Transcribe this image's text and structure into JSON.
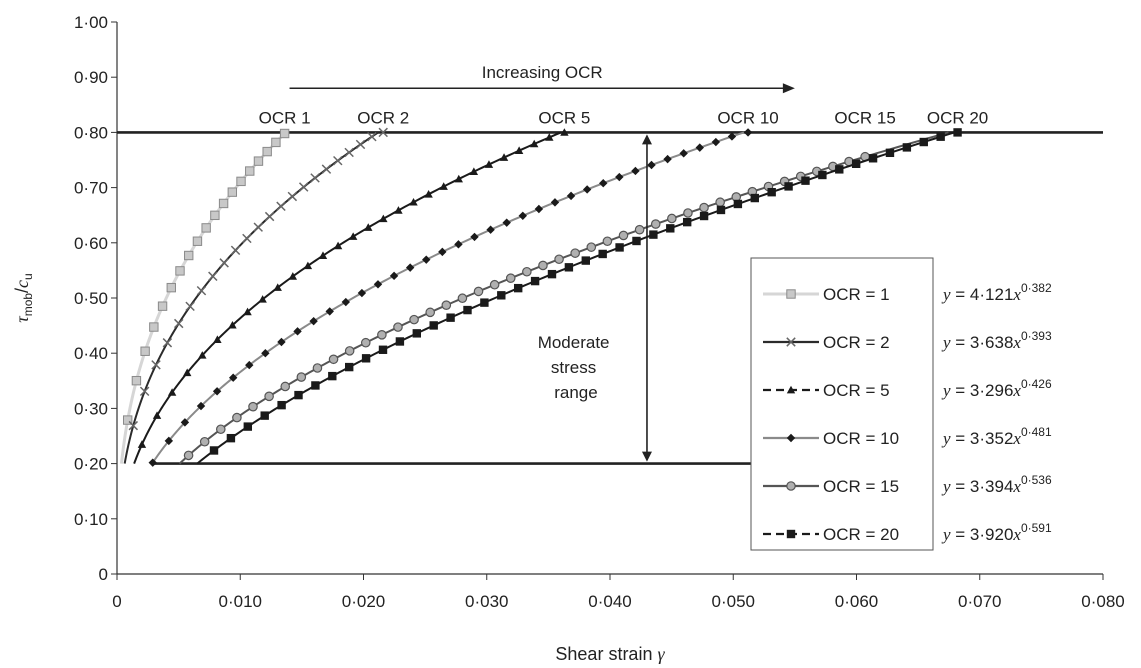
{
  "chart_data": {
    "type": "line",
    "xlabel": "Shear strain",
    "xlabel_symbol": "γ",
    "ylabel_main": "τ",
    "ylabel_main_sub": "mob",
    "ylabel_slash": "/",
    "ylabel_denom": "c",
    "ylabel_denom_sub": "u",
    "xlim": [
      0,
      0.08
    ],
    "ylim": [
      0,
      1.0
    ],
    "x_ticks": [
      0,
      0.01,
      0.02,
      0.03,
      0.04,
      0.05,
      0.06,
      0.07,
      0.08
    ],
    "x_tick_labels": [
      "0",
      "0·010",
      "0·020",
      "0·030",
      "0·040",
      "0·050",
      "0·060",
      "0·070",
      "0·080"
    ],
    "y_ticks": [
      0,
      0.1,
      0.2,
      0.3,
      0.4,
      0.5,
      0.6,
      0.7,
      0.8,
      0.9,
      1.0
    ],
    "y_tick_labels": [
      "0",
      "0·10",
      "0·20",
      "0·30",
      "0·40",
      "0·50",
      "0·60",
      "0·70",
      "0·80",
      "0·90",
      "1·00"
    ],
    "grid": false,
    "legend_position": "right",
    "series": [
      {
        "name": "OCR = 1",
        "eq_coef": "4·121",
        "eq_exp": "0·382",
        "a": 4.121,
        "b": 0.382,
        "x_start": 0.00016,
        "x_end": 0.0136,
        "n_markers": 20,
        "marker": "square-open",
        "color": "#b9b9b9",
        "line_color": "#d6d6d6",
        "curve_label": "OCR 1"
      },
      {
        "name": "OCR = 2",
        "eq_coef": "3·638",
        "eq_exp": "0·393",
        "a": 3.638,
        "b": 0.393,
        "x_start": 0.0004,
        "x_end": 0.0216,
        "n_markers": 24,
        "marker": "x",
        "color": "#666666",
        "line_color": "#2b2b2b",
        "curve_label": "OCR 2"
      },
      {
        "name": "OCR = 5",
        "eq_coef": "3·296",
        "eq_exp": "0·426",
        "a": 3.296,
        "b": 0.426,
        "x_start": 0.0008,
        "x_end": 0.0363,
        "n_markers": 30,
        "marker": "triangle",
        "color": "#1a1a1a",
        "line_color": "#1a1a1a",
        "curve_label": "OCR 5"
      },
      {
        "name": "OCR = 10",
        "eq_coef": "3·352",
        "eq_exp": "0·481",
        "a": 3.352,
        "b": 0.481,
        "x_start": 0.0029,
        "x_end": 0.0512,
        "n_markers": 38,
        "marker": "diamond",
        "color": "#1a1a1a",
        "line_color": "#8a8a8a",
        "curve_label": "OCR 10"
      },
      {
        "name": "OCR = 15",
        "eq_coef": "3·394",
        "eq_exp": "0·536",
        "a": 3.394,
        "b": 0.536,
        "x_start": 0.0045,
        "x_end": 0.0607,
        "n_markers": 44,
        "marker": "circle",
        "color": "#8a8a8a",
        "line_color": "#555555",
        "curve_label": "OCR 15"
      },
      {
        "name": "OCR = 20",
        "eq_coef": "3·920",
        "eq_exp": "0·591",
        "a": 3.92,
        "b": 0.591,
        "x_start": 0.0065,
        "x_end": 0.0682,
        "n_markers": 46,
        "marker": "square",
        "color": "#1a1a1a",
        "line_color": "#1a1a1a",
        "curve_label": "OCR 20"
      }
    ],
    "hlines": [
      0.8,
      0.2
    ],
    "annotations": {
      "increasing": "Increasing OCR",
      "increasing_from": 0.014,
      "increasing_to": 0.055,
      "increasing_y": 0.88,
      "moderate": [
        "Moderate",
        "stress",
        "range"
      ],
      "moderate_x": 0.043,
      "moderate_from": 0.8,
      "moderate_to": 0.2
    }
  }
}
